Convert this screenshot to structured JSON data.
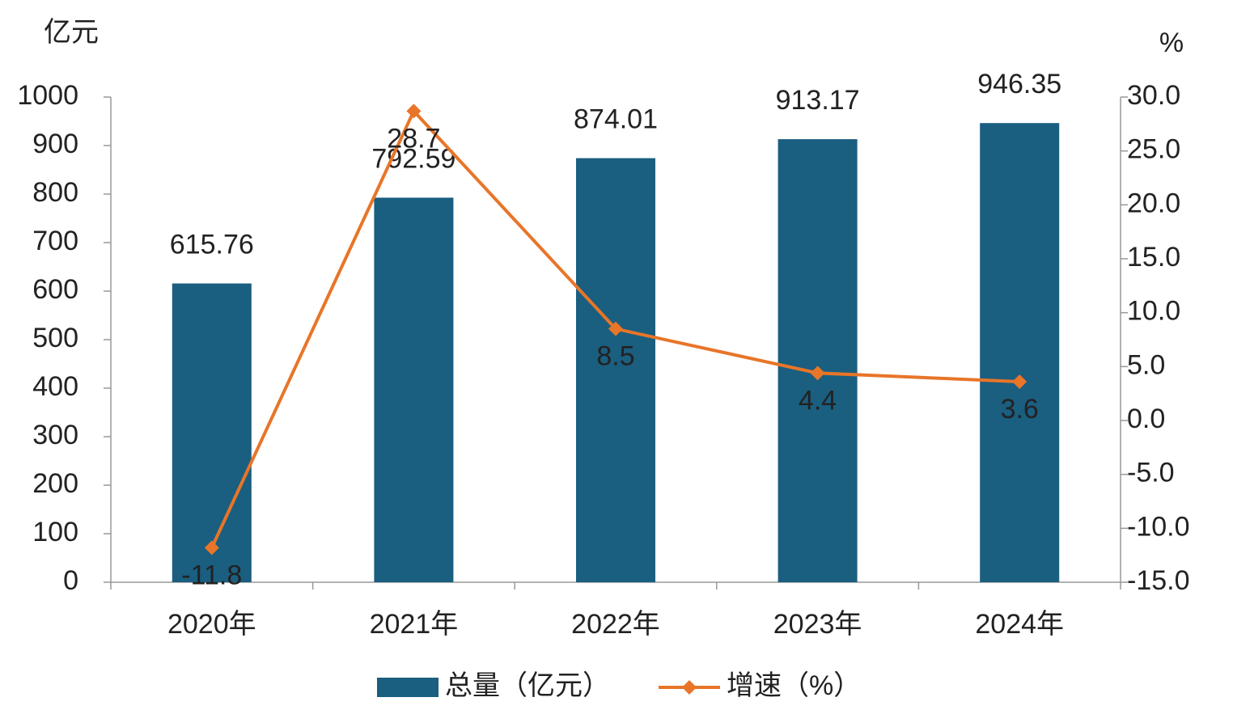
{
  "chart_data": {
    "type": "bar",
    "y_label": "亿元",
    "y2_label": "%",
    "categories": [
      "2020年",
      "2021年",
      "2022年",
      "2023年",
      "2024年"
    ],
    "series": [
      {
        "name": "总量（亿元）",
        "type": "bar",
        "color": "#1a5e80",
        "values": [
          615.76,
          792.59,
          874.01,
          913.17,
          946.35
        ]
      },
      {
        "name": "增速（%）",
        "type": "line",
        "axis": "y2",
        "color": "#e87528",
        "values": [
          -11.8,
          28.7,
          8.5,
          4.4,
          3.6
        ]
      }
    ],
    "ylim": [
      0,
      1000
    ],
    "yticks": [
      0,
      100,
      200,
      300,
      400,
      500,
      600,
      700,
      800,
      900,
      1000
    ],
    "y2lim": [
      -15,
      30
    ],
    "y2ticks": [
      {
        "value": -15,
        "label": "-15.0"
      },
      {
        "value": -10,
        "label": "-10.0"
      },
      {
        "value": -5,
        "label": "-5.0"
      },
      {
        "value": 0,
        "label": "0.0"
      },
      {
        "value": 5,
        "label": "5.0"
      },
      {
        "value": 10,
        "label": "10.0"
      },
      {
        "value": 15,
        "label": "15.0"
      },
      {
        "value": 20,
        "label": "20.0"
      },
      {
        "value": 25,
        "label": "25.0"
      },
      {
        "value": 30,
        "label": "30.0"
      }
    ],
    "grid": false,
    "legend": "bottom"
  }
}
